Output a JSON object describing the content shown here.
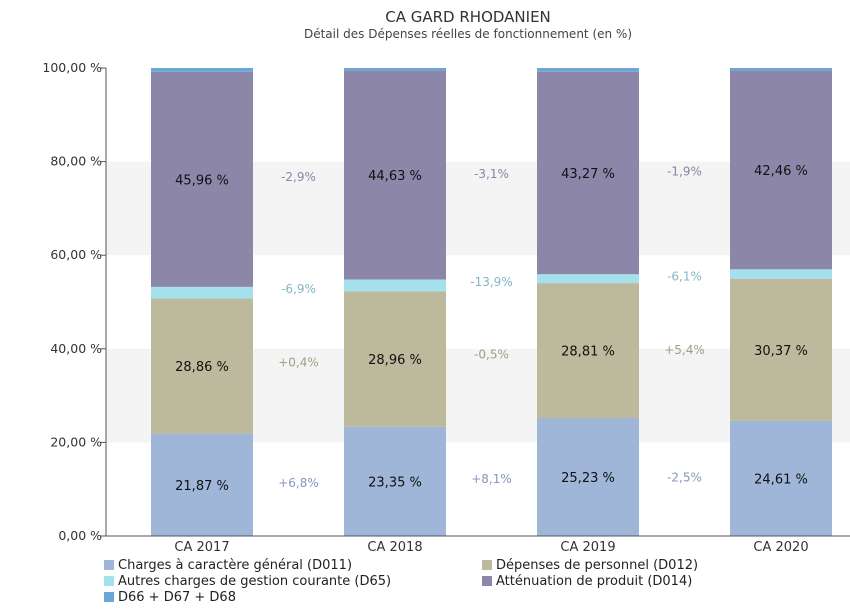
{
  "chart_data": {
    "type": "bar",
    "stacked": true,
    "title": "CA GARD RHODANIEN",
    "subtitle": "Détail des Dépenses réelles de fonctionnement (en %)",
    "categories": [
      "CA 2017",
      "CA 2018",
      "CA 2019",
      "CA 2020"
    ],
    "ylim": [
      0,
      100
    ],
    "yticks": [
      0,
      20,
      40,
      60,
      80,
      100
    ],
    "ytick_labels": [
      "0,00 %",
      "20,00 %",
      "40,00 %",
      "60,00 %",
      "80,00 %",
      "100,00 %"
    ],
    "grid": "alternating horizontal bands",
    "legend_position": "bottom",
    "series": [
      {
        "name": "Charges à caractère général (D011)",
        "color": "#9fb6d9",
        "values": [
          21.87,
          23.35,
          25.23,
          24.61
        ],
        "value_labels": [
          "21,87 %",
          "23,35 %",
          "25,23 %",
          "24,61 %"
        ],
        "growth_labels": [
          "+6,8%",
          "+8,1%",
          "-2,5%"
        ],
        "growth_color": "#8796bd"
      },
      {
        "name": "Dépenses de personnel (D012)",
        "color": "#bcb99c",
        "values": [
          28.86,
          28.96,
          28.81,
          30.37
        ],
        "value_labels": [
          "28,86 %",
          "28,96 %",
          "28,81 %",
          "30,37 %"
        ],
        "growth_labels": [
          "+0,4%",
          "-0,5%",
          "+5,4%"
        ],
        "growth_color": "#a29f80"
      },
      {
        "name": "Autres charges de gestion courante (D65)",
        "color": "#a5e1ec",
        "values": [
          2.5,
          2.5,
          1.9,
          2.0
        ],
        "value_labels": [
          "",
          "",
          "",
          ""
        ],
        "growth_labels": [
          "-6,9%",
          "-13,9%",
          "-6,1%"
        ],
        "growth_color": "#85b6c3"
      },
      {
        "name": "Atténuation de produit (D014)",
        "color": "#8c86a9",
        "values": [
          45.96,
          44.63,
          43.27,
          42.46
        ],
        "value_labels": [
          "45,96 %",
          "44,63 %",
          "43,27 %",
          "42,46 %"
        ],
        "growth_labels": [
          "-2,9%",
          "-3,1%",
          "-1,9%"
        ],
        "growth_color": "#8a84a8"
      },
      {
        "name": "D66 + D67 + D68",
        "color": "#6aa6d8",
        "values": [
          0.81,
          0.56,
          0.79,
          0.56
        ],
        "value_labels": [
          "",
          "",
          "",
          ""
        ],
        "growth_labels": [
          "",
          "",
          ""
        ],
        "growth_color": "#6aa6d8"
      }
    ]
  },
  "legend": {
    "items": [
      {
        "label": "Charges à caractère général (D011)",
        "color": "#9fb6d9"
      },
      {
        "label": "Dépenses de personnel (D012)",
        "color": "#bcb99c"
      },
      {
        "label": "Autres charges de gestion courante (D65)",
        "color": "#a5e1ec"
      },
      {
        "label": "Atténuation de produit (D014)",
        "color": "#8c86a9"
      },
      {
        "label": "D66 + D67 + D68",
        "color": "#6aa6d8"
      }
    ]
  }
}
